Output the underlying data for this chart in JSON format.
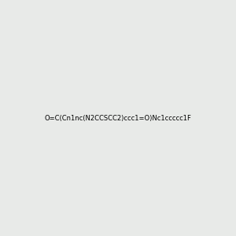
{
  "smiles": "O=C(Cn1nc(N2CCSCC2)ccc1=O)Nc1ccccc1F",
  "title": "",
  "bg_color": "#e8eae8",
  "fig_width": 3.0,
  "fig_height": 3.0,
  "dpi": 100
}
